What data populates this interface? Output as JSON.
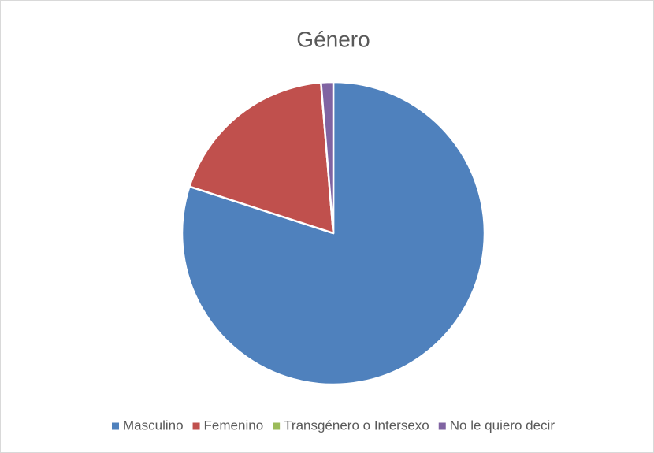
{
  "chart_data": {
    "type": "pie",
    "title": "Género",
    "categories": [
      "Masculino",
      "Femenino",
      "Transgénero o Intersexo",
      "No le quiero decir"
    ],
    "values": [
      80,
      18.7,
      0,
      1.3
    ],
    "colors": [
      "#4f81bd",
      "#c0504d",
      "#9bbb59",
      "#8064a2"
    ],
    "legend": "bottom"
  }
}
